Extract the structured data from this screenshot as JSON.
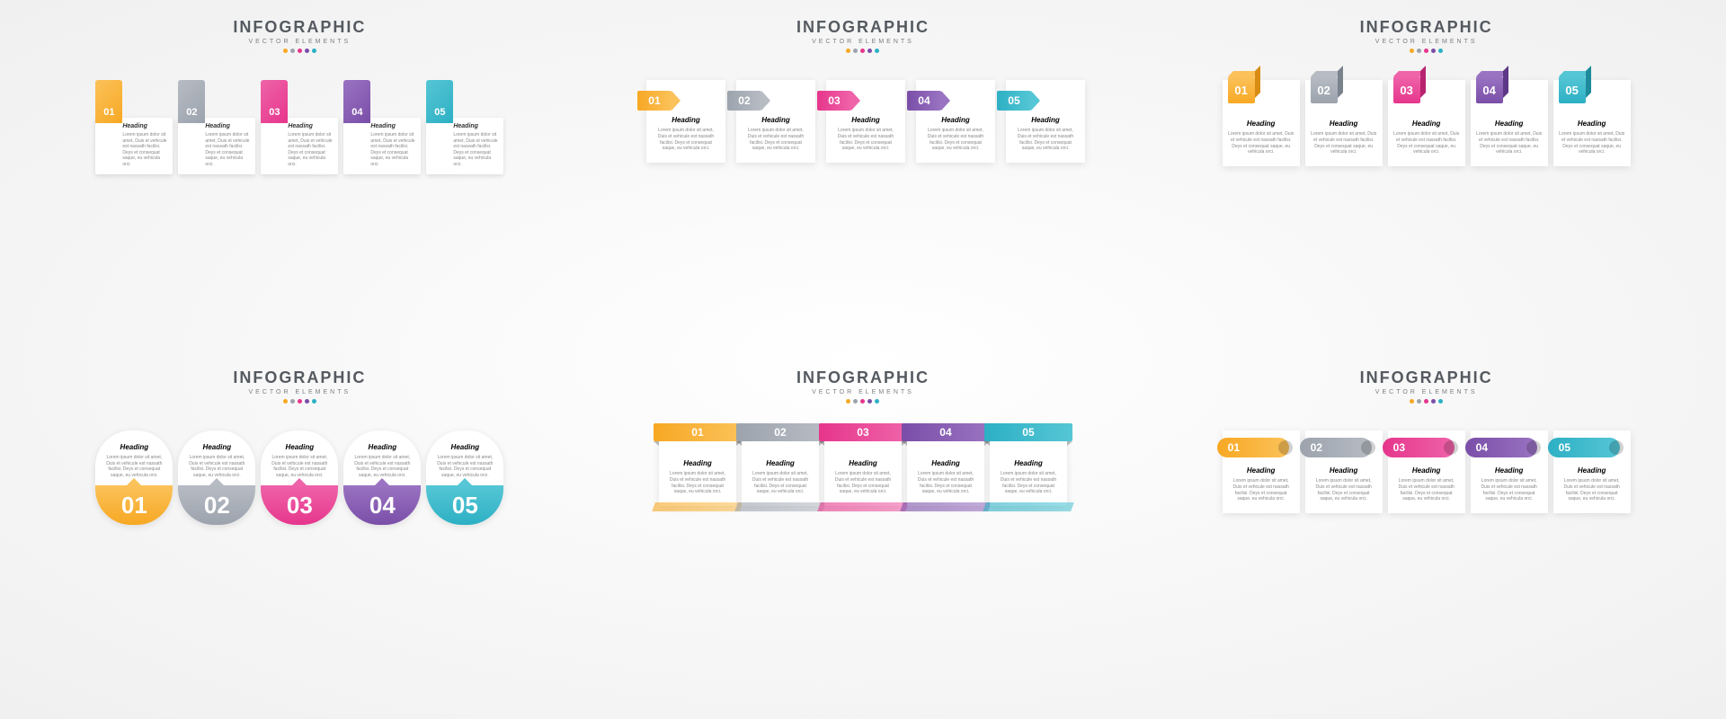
{
  "common": {
    "title": "INFOGRAPHIC",
    "subtitle": "VECTOR ELEMENTS",
    "title_fontsize": 18,
    "subtitle_fontsize": 7,
    "heading_label": "Heading",
    "body_text": "Lorem ipsum dolor sit amet, Duis et vehicule est nassath facilisi. Deys et consequat saque, eu vehicula orci.",
    "palette_dots": [
      "#f7a823",
      "#9ca3ad",
      "#e6368c",
      "#7a4ea8",
      "#2db0c4"
    ]
  },
  "items": [
    {
      "num": "01",
      "base": "#f7a823",
      "light": "#fbc25a",
      "dark": "#d88c12"
    },
    {
      "num": "02",
      "base": "#9ca3ad",
      "light": "#b7bcc4",
      "dark": "#7a828c"
    },
    {
      "num": "03",
      "base": "#e6368c",
      "light": "#ef63a9",
      "dark": "#b82370"
    },
    {
      "num": "04",
      "base": "#7a4ea8",
      "light": "#9a73c2",
      "dark": "#5d3886"
    },
    {
      "num": "05",
      "base": "#2db0c4",
      "light": "#55c6d5",
      "dark": "#1e8b9c"
    }
  ],
  "panels": [
    "a",
    "b",
    "c",
    "d",
    "e",
    "f"
  ]
}
